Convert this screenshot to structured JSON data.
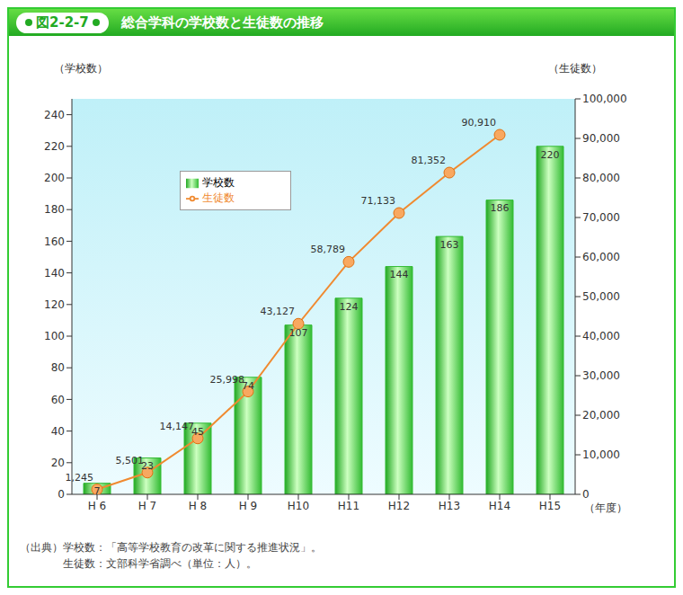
{
  "chart_data": {
    "type": "bar",
    "label": "図2-2-7",
    "title": "総合学科の学校数と生徒数の推移",
    "y_label": "（学校数）",
    "y2_label": "（生徒数）",
    "x_label": "（年度）",
    "annotations": [
      "（出典）学校数：「高等学校教育の改革に関する推進状況」。",
      "生徒数：文部科学省調べ（単位：人）。"
    ],
    "categories": [
      "H 6",
      "H 7",
      "H 8",
      "H 9",
      "H10",
      "H11",
      "H12",
      "H13",
      "H14",
      "H15"
    ],
    "series": [
      {
        "name": "学校数",
        "type": "bar",
        "color": "#33bb33",
        "values": [
          7,
          23,
          45,
          74,
          107,
          124,
          144,
          163,
          186,
          220
        ],
        "data_labels": true
      },
      {
        "name": "生徒数",
        "type": "line",
        "color": "#f08a30",
        "marker": "circle",
        "axis": "y2",
        "values": [
          1245,
          5501,
          14147,
          25998,
          43127,
          58789,
          71133,
          81352,
          90910,
          null
        ],
        "value_labels": [
          "1,245",
          "5,501",
          "14,147",
          "25,998",
          "43,127",
          "58,789",
          "71,133",
          "81,352",
          "90,910",
          null
        ],
        "data_labels": true
      }
    ],
    "ylim": [
      0,
      250
    ],
    "yticks": [
      0,
      20,
      40,
      60,
      80,
      100,
      120,
      140,
      160,
      180,
      200,
      220,
      240
    ],
    "y2lim": [
      0,
      100000
    ],
    "y2ticks": [
      0,
      {
        "value": 10000,
        "label": "10,000"
      },
      {
        "value": 20000,
        "label": "20,000"
      },
      {
        "value": 30000,
        "label": "30,000"
      },
      {
        "value": 40000,
        "label": "40,000"
      },
      {
        "value": 50000,
        "label": "50,000"
      },
      {
        "value": 60000,
        "label": "60,000"
      },
      {
        "value": 70000,
        "label": "70,000"
      },
      {
        "value": 80000,
        "label": "80,000"
      },
      {
        "value": 90000,
        "label": "90,000"
      },
      {
        "value": 100000,
        "label": "100,000"
      }
    ],
    "grid": false,
    "legend": "upper left"
  }
}
